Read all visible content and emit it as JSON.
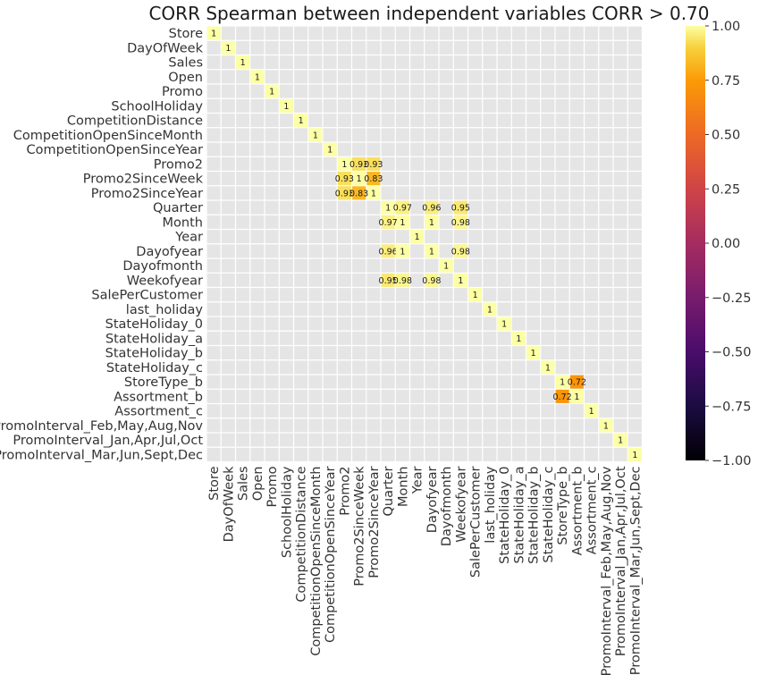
{
  "chart_data": {
    "type": "heatmap",
    "title": "CORR Spearman between independent variables CORR > 0.70",
    "variables": [
      "Store",
      "DayOfWeek",
      "Sales",
      "Open",
      "Promo",
      "SchoolHoliday",
      "CompetitionDistance",
      "CompetitionOpenSinceMonth",
      "CompetitionOpenSinceYear",
      "Promo2",
      "Promo2SinceWeek",
      "Promo2SinceYear",
      "Quarter",
      "Month",
      "Year",
      "Dayofyear",
      "Dayofmonth",
      "Weekofyear",
      "SalePerCustomer",
      "last_holiday",
      "StateHoliday_0",
      "StateHoliday_a",
      "StateHoliday_b",
      "StateHoliday_c",
      "StoreType_b",
      "Assortment_b",
      "Assortment_c",
      "PromoInterval_Feb,May,Aug,Nov",
      "PromoInterval_Jan,Apr,Jul,Oct",
      "PromoInterval_Mar,Jun,Sept,Dec"
    ],
    "threshold": 0.7,
    "diagonal_value": 1,
    "diagonal_label": "1",
    "cells": [
      {
        "row": 9,
        "col": 10,
        "value": 0.93,
        "label": "0.93"
      },
      {
        "row": 9,
        "col": 11,
        "value": 0.93,
        "label": "0.93"
      },
      {
        "row": 10,
        "col": 9,
        "value": 0.93,
        "label": "0.93"
      },
      {
        "row": 10,
        "col": 11,
        "value": 0.83,
        "label": "0.83"
      },
      {
        "row": 11,
        "col": 9,
        "value": 0.93,
        "label": "0.93"
      },
      {
        "row": 11,
        "col": 10,
        "value": 0.83,
        "label": "0.83"
      },
      {
        "row": 12,
        "col": 13,
        "value": 0.97,
        "label": "0.97"
      },
      {
        "row": 12,
        "col": 15,
        "value": 0.96,
        "label": "0.96"
      },
      {
        "row": 12,
        "col": 17,
        "value": 0.95,
        "label": "0.95"
      },
      {
        "row": 13,
        "col": 12,
        "value": 0.97,
        "label": "0.97"
      },
      {
        "row": 13,
        "col": 15,
        "value": 1,
        "label": "1"
      },
      {
        "row": 13,
        "col": 17,
        "value": 0.98,
        "label": "0.98"
      },
      {
        "row": 15,
        "col": 12,
        "value": 0.96,
        "label": "0.96"
      },
      {
        "row": 15,
        "col": 13,
        "value": 1,
        "label": "1"
      },
      {
        "row": 15,
        "col": 17,
        "value": 0.98,
        "label": "0.98"
      },
      {
        "row": 17,
        "col": 12,
        "value": 0.95,
        "label": "0.95"
      },
      {
        "row": 17,
        "col": 13,
        "value": 0.98,
        "label": "0.98"
      },
      {
        "row": 17,
        "col": 15,
        "value": 0.98,
        "label": "0.98"
      },
      {
        "row": 24,
        "col": 25,
        "value": 0.72,
        "label": "0.72"
      },
      {
        "row": 25,
        "col": 24,
        "value": 0.72,
        "label": "0.72"
      }
    ],
    "colorbar": {
      "colormap": "inferno",
      "vmin": -1.0,
      "vmax": 1.0,
      "ticks": [
        "1.00",
        "0.75",
        "0.50",
        "0.25",
        "0.00",
        "−0.25",
        "−0.50",
        "−0.75",
        "−1.00"
      ],
      "tick_values": [
        1.0,
        0.75,
        0.5,
        0.25,
        0.0,
        -0.25,
        -0.5,
        -0.75,
        -1.0
      ]
    },
    "masked_color": "#e5e5e5",
    "grid_line_color": "#ffffff"
  }
}
